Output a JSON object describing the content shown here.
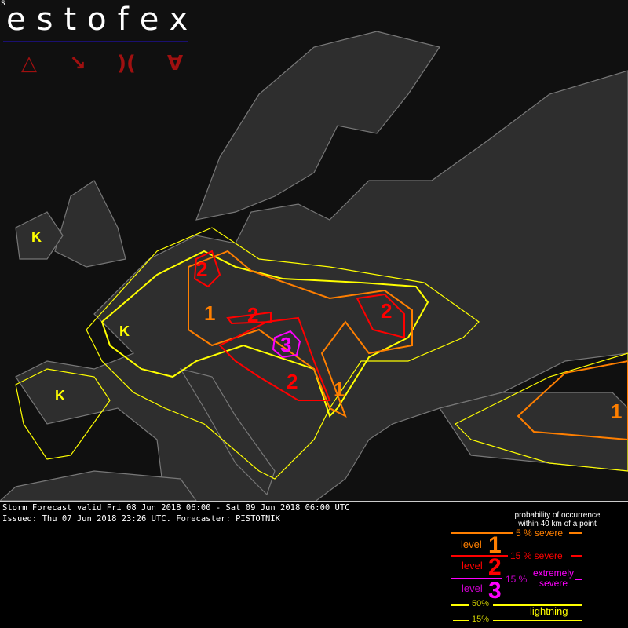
{
  "logo": {
    "small": "S",
    "title": "estofex",
    "icons": [
      "triangle-icon",
      "wind-arrow-icon",
      "tornado-icon",
      "hail-icon"
    ],
    "icon_glyphs": [
      "△",
      "↘",
      ")(",
      "∀"
    ],
    "color": "#a01010"
  },
  "forecast": {
    "valid": "Storm Forecast valid Fri 08 Jun 2018 06:00 - Sat 09 Jun 2018 06:00 UTC",
    "issued": "Issued: Thu 07 Jun 2018 23:26 UTC. Forecaster: PISTOTNIK"
  },
  "map": {
    "labels": {
      "l2_germany": "2",
      "l1_germany": "1",
      "l2_czech": "2",
      "l2_ukraine": "2",
      "l3_croatia": "3",
      "l2_balkans": "2",
      "l1_balkans": "1",
      "l1_turkey": "1"
    },
    "lightning_symbol": "K",
    "colors": {
      "level1": "#ff7f00",
      "level2": "#ff0000",
      "level3": "#ff00ff",
      "lightning": "#ffff00"
    }
  },
  "legend": {
    "header1": "probability of occurrence",
    "header2": "within 40 km of a point",
    "l1_prob": "5 % severe",
    "level_word": "level",
    "l1_num": "1",
    "l2_prob": "15 % severe",
    "l2_num": "2",
    "l3_prob": "15 %",
    "l3_desc1": "extremely",
    "l3_desc2": "severe",
    "l3_num": "3",
    "lt50": "50%",
    "lt15": "15%",
    "lightning": "lightning"
  }
}
